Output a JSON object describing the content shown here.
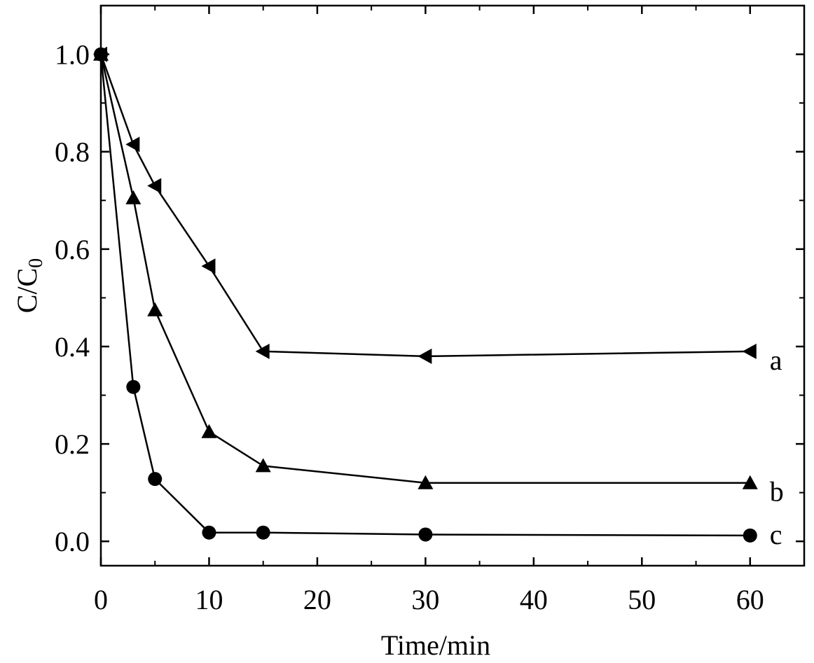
{
  "chart_data": {
    "type": "line",
    "xlabel": "Time/min",
    "ylabel": {
      "main": "C/C",
      "sub": "0"
    },
    "xlim": [
      0,
      65
    ],
    "ylim": [
      -0.05,
      1.1
    ],
    "xticks": [
      0,
      10,
      20,
      30,
      40,
      50,
      60
    ],
    "xtick_labels": [
      "0",
      "10",
      "20",
      "30",
      "40",
      "50",
      "60"
    ],
    "yticks": [
      0.0,
      0.2,
      0.4,
      0.6,
      0.8,
      1.0
    ],
    "ytick_labels": [
      "0.0",
      "0.2",
      "0.4",
      "0.6",
      "0.8",
      "1.0"
    ],
    "grid": false,
    "series": [
      {
        "name": "a",
        "marker": "triangle-left",
        "x": [
          0,
          3,
          5,
          10,
          15,
          30,
          60
        ],
        "y": [
          1.0,
          0.815,
          0.73,
          0.565,
          0.39,
          0.38,
          0.39
        ]
      },
      {
        "name": "b",
        "marker": "triangle-up",
        "x": [
          0,
          3,
          5,
          10,
          15,
          30,
          60
        ],
        "y": [
          1.0,
          0.705,
          0.475,
          0.225,
          0.155,
          0.12,
          0.12
        ]
      },
      {
        "name": "c",
        "marker": "circle",
        "x": [
          0,
          3,
          5,
          10,
          15,
          30,
          60
        ],
        "y": [
          1.0,
          0.317,
          0.128,
          0.018,
          0.018,
          0.014,
          0.012
        ]
      }
    ],
    "colors": {
      "line": "#000000",
      "marker": "#000000"
    }
  }
}
